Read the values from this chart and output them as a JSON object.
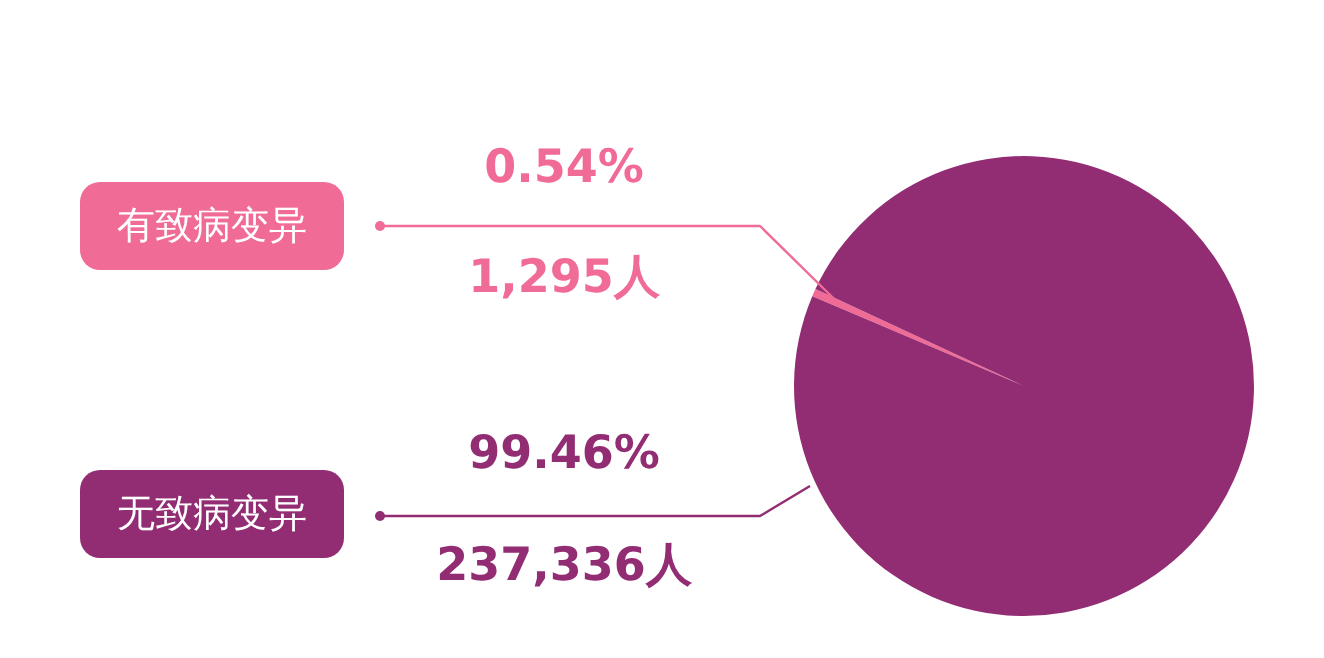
{
  "chart_data": {
    "type": "pie",
    "categories": [
      "有致病变异",
      "无致病变异"
    ],
    "values": [
      1295,
      237336
    ],
    "colors": [
      "#f06b96",
      "#922d74"
    ],
    "value_labels": [
      "1,295人",
      "237,336人"
    ],
    "annotations": [
      "0.54%",
      "99.46%"
    ],
    "legend": "left"
  }
}
